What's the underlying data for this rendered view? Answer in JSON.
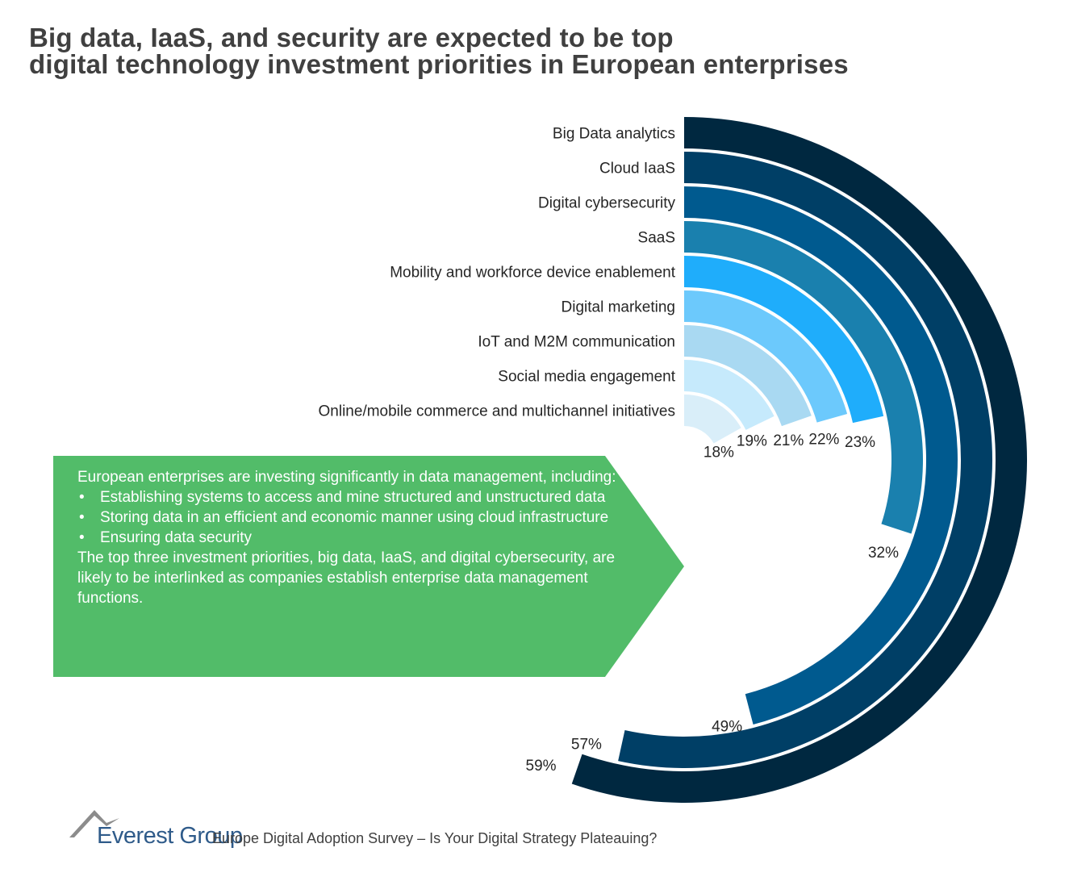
{
  "title": {
    "line1": "Big data, IaaS, and security are expected to be top",
    "line2": "digital technology investment priorities in European enterprises"
  },
  "chart_data": {
    "type": "radial-bar",
    "categories": [
      "Big Data analytics",
      "Cloud IaaS",
      "Digital cybersecurity",
      "SaaS",
      "Mobility and workforce device enablement",
      "Digital marketing",
      "IoT and M2M communication",
      "Social media engagement",
      "Online/mobile commerce and multichannel initiatives"
    ],
    "values": [
      59,
      57,
      49,
      32,
      23,
      22,
      21,
      19,
      18
    ],
    "value_labels": [
      "59%",
      "57%",
      "49%",
      "32%",
      "23%",
      "22%",
      "21%",
      "19%",
      "18%"
    ],
    "colors": [
      "#002840",
      "#003f66",
      "#005a8f",
      "#1a80ae",
      "#1fadfb",
      "#6cc9fc",
      "#a9d9f2",
      "#c6eafc",
      "#d9eef9"
    ],
    "scale_max_percent": 80
  },
  "callout": {
    "intro": "European enterprises are investing significantly in data management, including:",
    "bullets": [
      "Establishing systems to access and mine structured and unstructured data",
      "Storing data in an efficient and economic manner using cloud infrastructure",
      "Ensuring data security"
    ],
    "conclusion": "The top three investment priorities, big data, IaaS, and digital cybersecurity, are likely to be interlinked as companies establish enterprise data management functions."
  },
  "footer": {
    "brand": "Everest Group",
    "subtitle": "Europe Digital Adoption Survey – Is Your Digital Strategy Plateauing?"
  }
}
